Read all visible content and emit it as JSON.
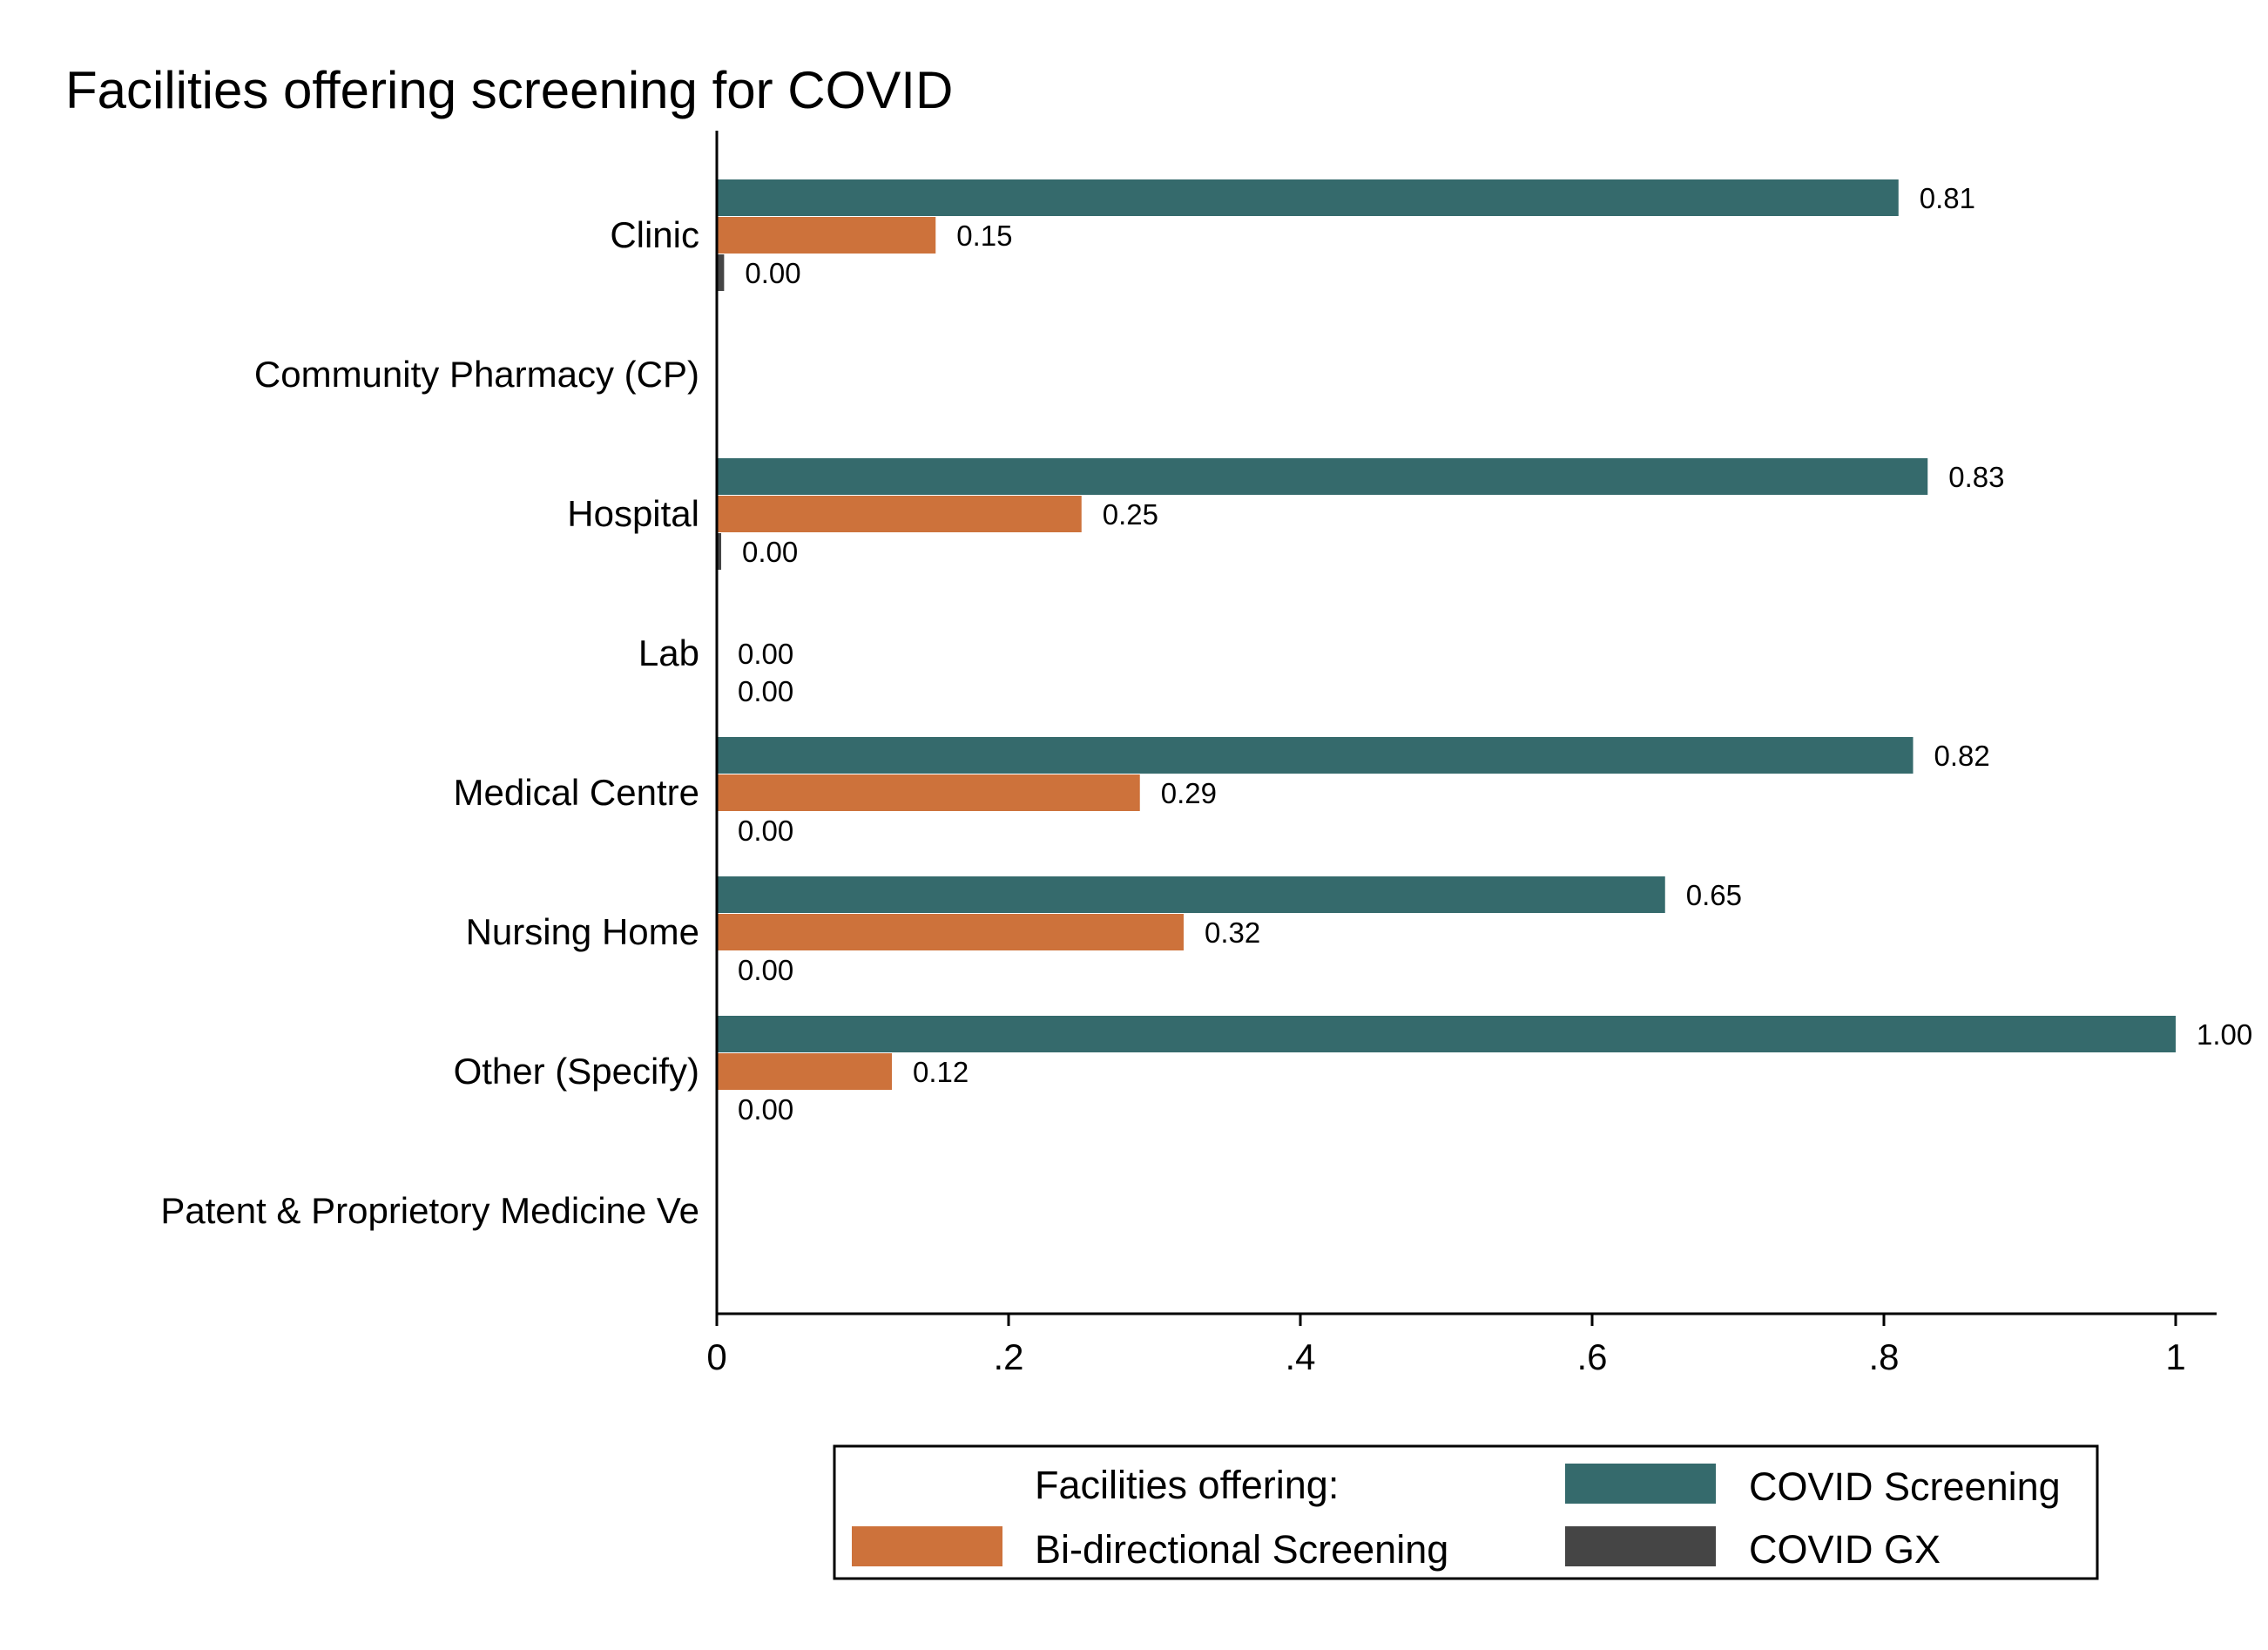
{
  "chart_data": {
    "type": "bar",
    "orientation": "horizontal",
    "title": "Facilities offering screening for COVID",
    "xlabel": "",
    "ylabel": "",
    "xlim": [
      0,
      1
    ],
    "x_ticks": [
      0,
      0.2,
      0.4,
      0.6,
      0.8,
      1
    ],
    "x_tick_labels": [
      "0",
      ".2",
      ".4",
      ".6",
      ".8",
      "1"
    ],
    "grid": false,
    "categories": [
      "Clinic",
      "Community Pharmacy (CP)",
      "Hospital",
      "Lab",
      "Medical Centre",
      "Nursing Home",
      "Other (Specify)",
      "Patent & Proprietory Medicine Ve"
    ],
    "series": [
      {
        "name": "COVID Screening",
        "color": "#356a6c",
        "values": [
          0.81,
          null,
          0.83,
          null,
          0.82,
          0.65,
          1.0,
          null
        ],
        "labels": [
          "0.81",
          null,
          "0.83",
          null,
          "0.82",
          "0.65",
          "1.00",
          null
        ]
      },
      {
        "name": "Bi-directional Screening",
        "color": "#cd723b",
        "values": [
          0.15,
          null,
          0.25,
          0.0,
          0.29,
          0.32,
          0.12,
          null
        ],
        "labels": [
          "0.15",
          null,
          "0.25",
          "0.00",
          "0.29",
          "0.32",
          "0.12",
          null
        ]
      },
      {
        "name": "COVID GX",
        "color": "#454545",
        "values": [
          0.005,
          null,
          0.003,
          0.0,
          0.0,
          0.0,
          0.0,
          null
        ],
        "labels": [
          "0.00",
          null,
          "0.00",
          "0.00",
          "0.00",
          "0.00",
          "0.00",
          null
        ]
      }
    ],
    "legend": {
      "placement": "bottom",
      "title": "Facilities offering:",
      "order": [
        {
          "series_index": 0,
          "slot": "top-right"
        },
        {
          "series_index": 1,
          "slot": "bottom-left"
        },
        {
          "series_index": 2,
          "slot": "bottom-right"
        }
      ]
    }
  }
}
